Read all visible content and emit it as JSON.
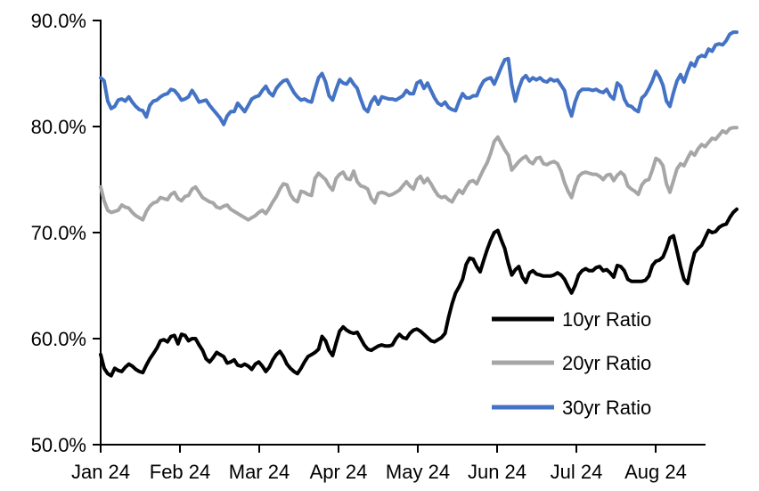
{
  "chart_data": {
    "type": "line",
    "title": "",
    "xlabel": "",
    "ylabel": "",
    "grid": false,
    "background": "#ffffff",
    "axis_color": "#000000",
    "x_axis": {
      "tick_labels": [
        "Jan 24",
        "Feb 24",
        "Mar 24",
        "Apr 24",
        "May 24",
        "Jun 24",
        "Jul 24",
        "Aug 24"
      ],
      "unit": "month (2024)",
      "sampling": "daily values, Jan 2024 through end of Aug 2024, uniformly spaced"
    },
    "y_axis": {
      "tick_labels": [
        "90.0%",
        "80.0%",
        "70.0%",
        "60.0%",
        "50.0%"
      ],
      "tick_values": [
        90,
        80,
        70,
        60,
        50
      ],
      "min": 50,
      "max": 90,
      "format": "percent"
    },
    "legend": {
      "position": "inside-lower-right",
      "entries": [
        "10yr Ratio",
        "20yr Ratio",
        "30yr Ratio"
      ]
    },
    "series": [
      {
        "name": "10yr Ratio",
        "color": "#000000",
        "values": [
          58.5,
          57.2,
          56.7,
          56.5,
          57.2,
          57.0,
          56.9,
          57.3,
          57.6,
          57.4,
          57.1,
          56.9,
          56.8,
          57.5,
          58.1,
          58.6,
          59.1,
          59.8,
          59.9,
          59.7,
          60.2,
          60.3,
          59.5,
          60.4,
          60.3,
          59.8,
          60.0,
          60.0,
          59.4,
          58.9,
          58.1,
          57.8,
          58.2,
          58.7,
          58.5,
          58.3,
          57.7,
          57.8,
          58.0,
          57.5,
          57.4,
          57.6,
          57.4,
          57.1,
          57.6,
          57.8,
          57.4,
          56.9,
          57.3,
          58.0,
          58.5,
          58.8,
          58.3,
          57.6,
          57.2,
          56.9,
          56.7,
          57.2,
          57.8,
          58.3,
          58.5,
          58.7,
          59.0,
          60.2,
          59.8,
          58.9,
          58.4,
          59.6,
          60.7,
          61.1,
          60.8,
          60.6,
          60.5,
          60.6,
          60.0,
          59.4,
          59.0,
          58.9,
          59.1,
          59.3,
          59.4,
          59.3,
          59.3,
          59.4,
          60.0,
          60.4,
          60.1,
          60.0,
          60.5,
          60.8,
          60.9,
          60.7,
          60.4,
          60.1,
          59.8,
          59.7,
          59.9,
          60.1,
          60.5,
          62.0,
          63.3,
          64.3,
          64.9,
          65.6,
          67.0,
          67.6,
          67.5,
          66.8,
          66.3,
          67.4,
          68.4,
          69.3,
          70.0,
          70.2,
          69.3,
          68.5,
          67.1,
          66.0,
          66.5,
          66.8,
          65.8,
          65.3,
          66.2,
          66.4,
          66.1,
          66.0,
          65.9,
          65.9,
          65.9,
          66.0,
          66.2,
          66.0,
          65.6,
          64.9,
          64.3,
          65.0,
          66.0,
          66.4,
          66.6,
          66.4,
          66.4,
          66.7,
          66.8,
          66.4,
          66.5,
          66.2,
          65.8,
          66.9,
          66.8,
          66.4,
          65.6,
          65.4,
          65.4,
          65.4,
          65.4,
          65.5,
          65.9,
          66.9,
          67.3,
          67.4,
          67.7,
          68.5,
          69.5,
          69.7,
          68.3,
          66.8,
          65.6,
          65.2,
          66.8,
          68.1,
          68.5,
          68.8,
          69.5,
          70.2,
          70.0,
          70.1,
          70.5,
          70.7,
          70.8,
          71.4,
          71.9,
          72.2
        ]
      },
      {
        "name": "20yr Ratio",
        "color": "#A6A6A6",
        "values": [
          74.3,
          73.0,
          72.1,
          71.9,
          72.0,
          72.1,
          72.6,
          72.4,
          72.3,
          71.9,
          71.6,
          71.4,
          71.2,
          72.0,
          72.5,
          72.8,
          72.9,
          73.3,
          73.2,
          73.1,
          73.6,
          73.8,
          73.2,
          73.0,
          73.4,
          73.5,
          74.1,
          74.3,
          73.8,
          73.3,
          73.1,
          72.9,
          72.8,
          72.4,
          72.3,
          72.5,
          72.6,
          72.2,
          72.0,
          71.8,
          71.6,
          71.4,
          71.2,
          71.4,
          71.6,
          71.9,
          72.1,
          71.8,
          72.3,
          72.9,
          73.4,
          74.1,
          74.6,
          74.5,
          73.6,
          73.1,
          72.9,
          73.9,
          73.8,
          73.6,
          73.5,
          75.1,
          75.6,
          75.3,
          75.0,
          74.4,
          74.0,
          75.1,
          75.5,
          75.7,
          75.1,
          75.0,
          75.8,
          74.8,
          74.4,
          74.3,
          74.1,
          73.2,
          72.8,
          73.7,
          73.8,
          73.7,
          73.5,
          73.6,
          73.8,
          74.0,
          74.4,
          74.8,
          74.4,
          74.1,
          75.0,
          75.3,
          74.7,
          75.1,
          74.6,
          74.0,
          73.5,
          73.3,
          73.4,
          73.1,
          72.9,
          73.5,
          74.0,
          73.7,
          74.3,
          74.8,
          74.9,
          74.6,
          75.3,
          76.0,
          76.6,
          77.5,
          78.6,
          79.0,
          78.4,
          77.8,
          77.3,
          75.9,
          76.3,
          76.7,
          77.0,
          77.2,
          76.7,
          76.5,
          77.0,
          77.1,
          76.5,
          76.4,
          76.6,
          76.7,
          76.5,
          75.8,
          74.7,
          73.9,
          73.3,
          74.4,
          75.3,
          75.6,
          75.7,
          75.6,
          75.5,
          75.5,
          75.3,
          75.0,
          75.4,
          75.5,
          74.9,
          75.4,
          75.7,
          75.4,
          74.4,
          74.1,
          73.9,
          73.6,
          74.5,
          74.9,
          75.0,
          75.9,
          77.0,
          76.8,
          76.3,
          74.6,
          73.8,
          74.9,
          76.0,
          76.5,
          76.3,
          77.0,
          77.6,
          77.3,
          77.9,
          78.3,
          78.1,
          78.5,
          78.9,
          78.8,
          79.2,
          79.6,
          79.4,
          79.8,
          79.9,
          79.9
        ]
      },
      {
        "name": "30yr Ratio",
        "color": "#4472C4",
        "values": [
          84.6,
          84.3,
          82.4,
          81.7,
          81.9,
          82.5,
          82.6,
          82.4,
          82.8,
          82.3,
          81.9,
          81.6,
          81.5,
          80.9,
          82.0,
          82.4,
          82.5,
          82.8,
          83.0,
          83.1,
          83.5,
          83.4,
          83.0,
          82.5,
          82.6,
          82.8,
          83.4,
          82.9,
          82.3,
          82.4,
          82.5,
          82.0,
          81.6,
          81.2,
          80.8,
          80.2,
          81.0,
          81.4,
          81.4,
          82.2,
          81.8,
          81.4,
          82.0,
          82.6,
          82.8,
          82.9,
          83.4,
          83.8,
          83.2,
          82.9,
          83.6,
          84.0,
          84.3,
          84.4,
          83.8,
          83.2,
          82.8,
          82.5,
          82.6,
          82.4,
          82.3,
          83.5,
          84.6,
          85.0,
          84.2,
          82.9,
          82.5,
          83.5,
          84.4,
          84.1,
          84.0,
          84.5,
          84.0,
          83.6,
          82.6,
          81.7,
          81.4,
          82.3,
          82.8,
          82.1,
          82.8,
          82.7,
          82.6,
          82.6,
          82.5,
          82.7,
          82.9,
          83.4,
          83.1,
          83.1,
          84.1,
          84.3,
          83.6,
          84.1,
          83.4,
          82.7,
          82.2,
          82.0,
          82.3,
          81.8,
          81.6,
          81.5,
          82.4,
          83.1,
          82.7,
          82.7,
          82.9,
          82.9,
          83.7,
          84.3,
          84.5,
          84.6,
          84.0,
          84.8,
          85.6,
          86.3,
          86.4,
          83.9,
          82.4,
          83.6,
          84.5,
          84.8,
          84.3,
          84.6,
          84.4,
          84.6,
          84.3,
          84.2,
          84.5,
          84.3,
          84.4,
          83.9,
          83.4,
          81.9,
          81.0,
          82.3,
          83.2,
          83.5,
          83.5,
          83.5,
          83.4,
          83.5,
          83.3,
          83.2,
          83.5,
          82.9,
          82.6,
          84.1,
          83.8,
          82.6,
          82.0,
          81.9,
          81.6,
          81.4,
          82.7,
          83.0,
          83.6,
          84.3,
          85.2,
          84.7,
          83.9,
          82.4,
          81.9,
          83.2,
          84.3,
          84.9,
          84.2,
          85.2,
          86.0,
          85.7,
          86.5,
          86.7,
          86.6,
          87.3,
          87.1,
          87.7,
          87.8,
          87.7,
          88.1,
          88.7,
          88.9,
          88.9
        ]
      }
    ]
  }
}
